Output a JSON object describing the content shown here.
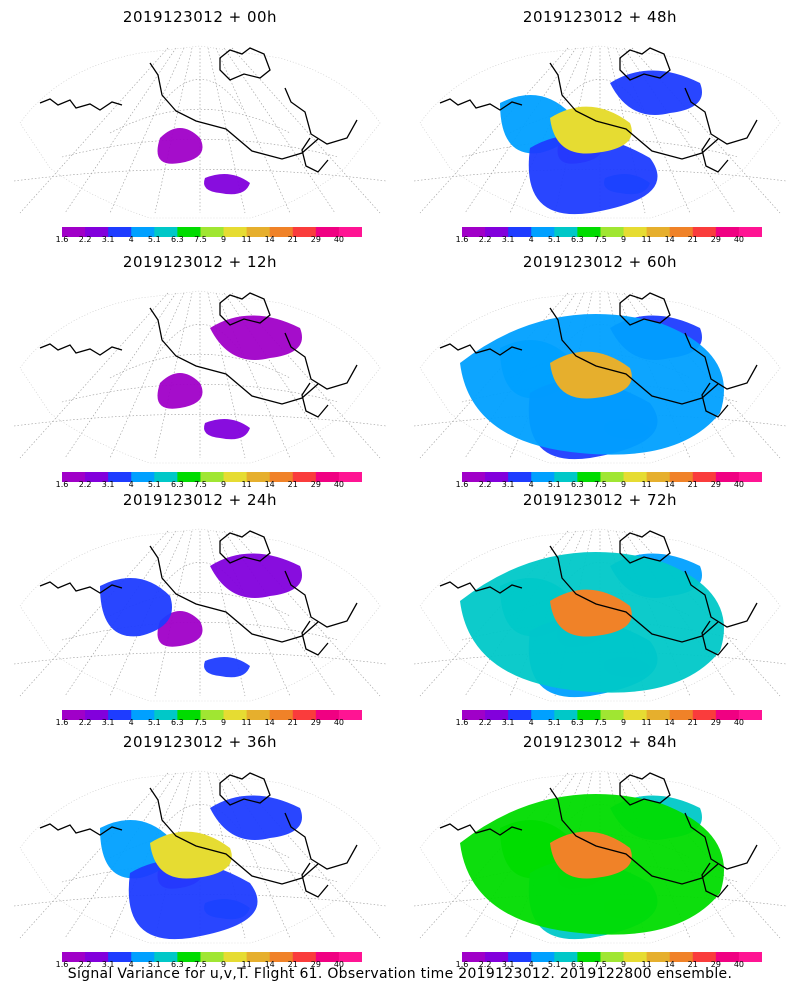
{
  "panels": [
    {
      "title": "2019123012 + 00h",
      "level": 0
    },
    {
      "title": "2019123012 + 48h",
      "level": 3
    },
    {
      "title": "2019123012 + 12h",
      "level": 1
    },
    {
      "title": "2019123012 + 60h",
      "level": 4
    },
    {
      "title": "2019123012 + 24h",
      "level": 2
    },
    {
      "title": "2019123012 + 72h",
      "level": 5
    },
    {
      "title": "2019123012 + 36h",
      "level": 3
    },
    {
      "title": "2019123012 + 84h",
      "level": 6
    }
  ],
  "colorbar": {
    "labels": [
      "1.6",
      "2.2",
      "3.1",
      "4",
      "5.1",
      "6.3",
      "7.5",
      "9",
      "11",
      "14",
      "21",
      "29",
      "40"
    ],
    "colors": [
      "#a000c8",
      "#8200dc",
      "#1e3cff",
      "#00a0ff",
      "#00c8c8",
      "#00dc00",
      "#a0e632",
      "#e6dc32",
      "#e6af2d",
      "#f08228",
      "#fa3c3c",
      "#f00082",
      "#ff1493"
    ]
  },
  "footer": "Signal Variance for u,v,T. Flight 61. Observation time 2019123012. 2019122800 ensemble."
}
